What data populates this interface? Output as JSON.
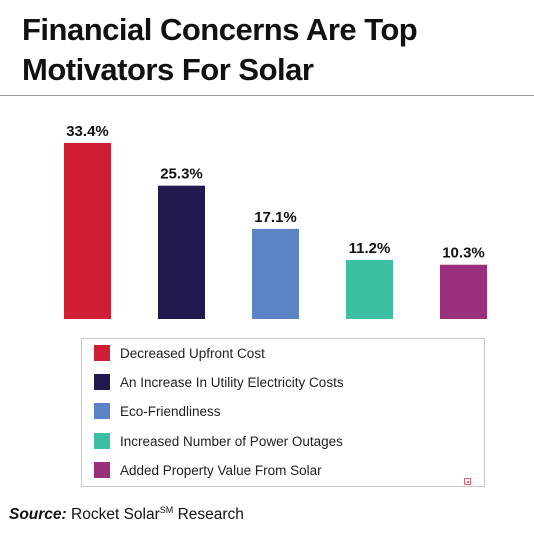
{
  "title": "Financial Concerns Are Top Motivators For Solar",
  "source": {
    "prefix": "Source:",
    "text": "Rocket Solar",
    "superscript": "SM",
    "suffix": "Research"
  },
  "chart_data": {
    "type": "bar",
    "title": "Financial Concerns Are Top Motivators For Solar",
    "categories": [
      "Decreased Upfront Cost",
      "An Increase In Utility Electricity Costs",
      "Eco-Friendliness",
      "Increased Number of Power Outages",
      "Added Property Value From Solar"
    ],
    "values": [
      33.4,
      25.3,
      17.1,
      11.2,
      10.3
    ],
    "value_labels": [
      "33.4%",
      "25.3%",
      "17.1%",
      "11.2%",
      "10.3%"
    ],
    "colors": [
      "#d01f35",
      "#221a4e",
      "#5b83c6",
      "#3cbfa3",
      "#9a2f7c"
    ],
    "xlabel": "",
    "ylabel": "",
    "ylim": [
      0,
      33.4
    ],
    "grid": false,
    "legend": "bottom"
  },
  "icons": {
    "legend_corner": "small-square-icon"
  }
}
